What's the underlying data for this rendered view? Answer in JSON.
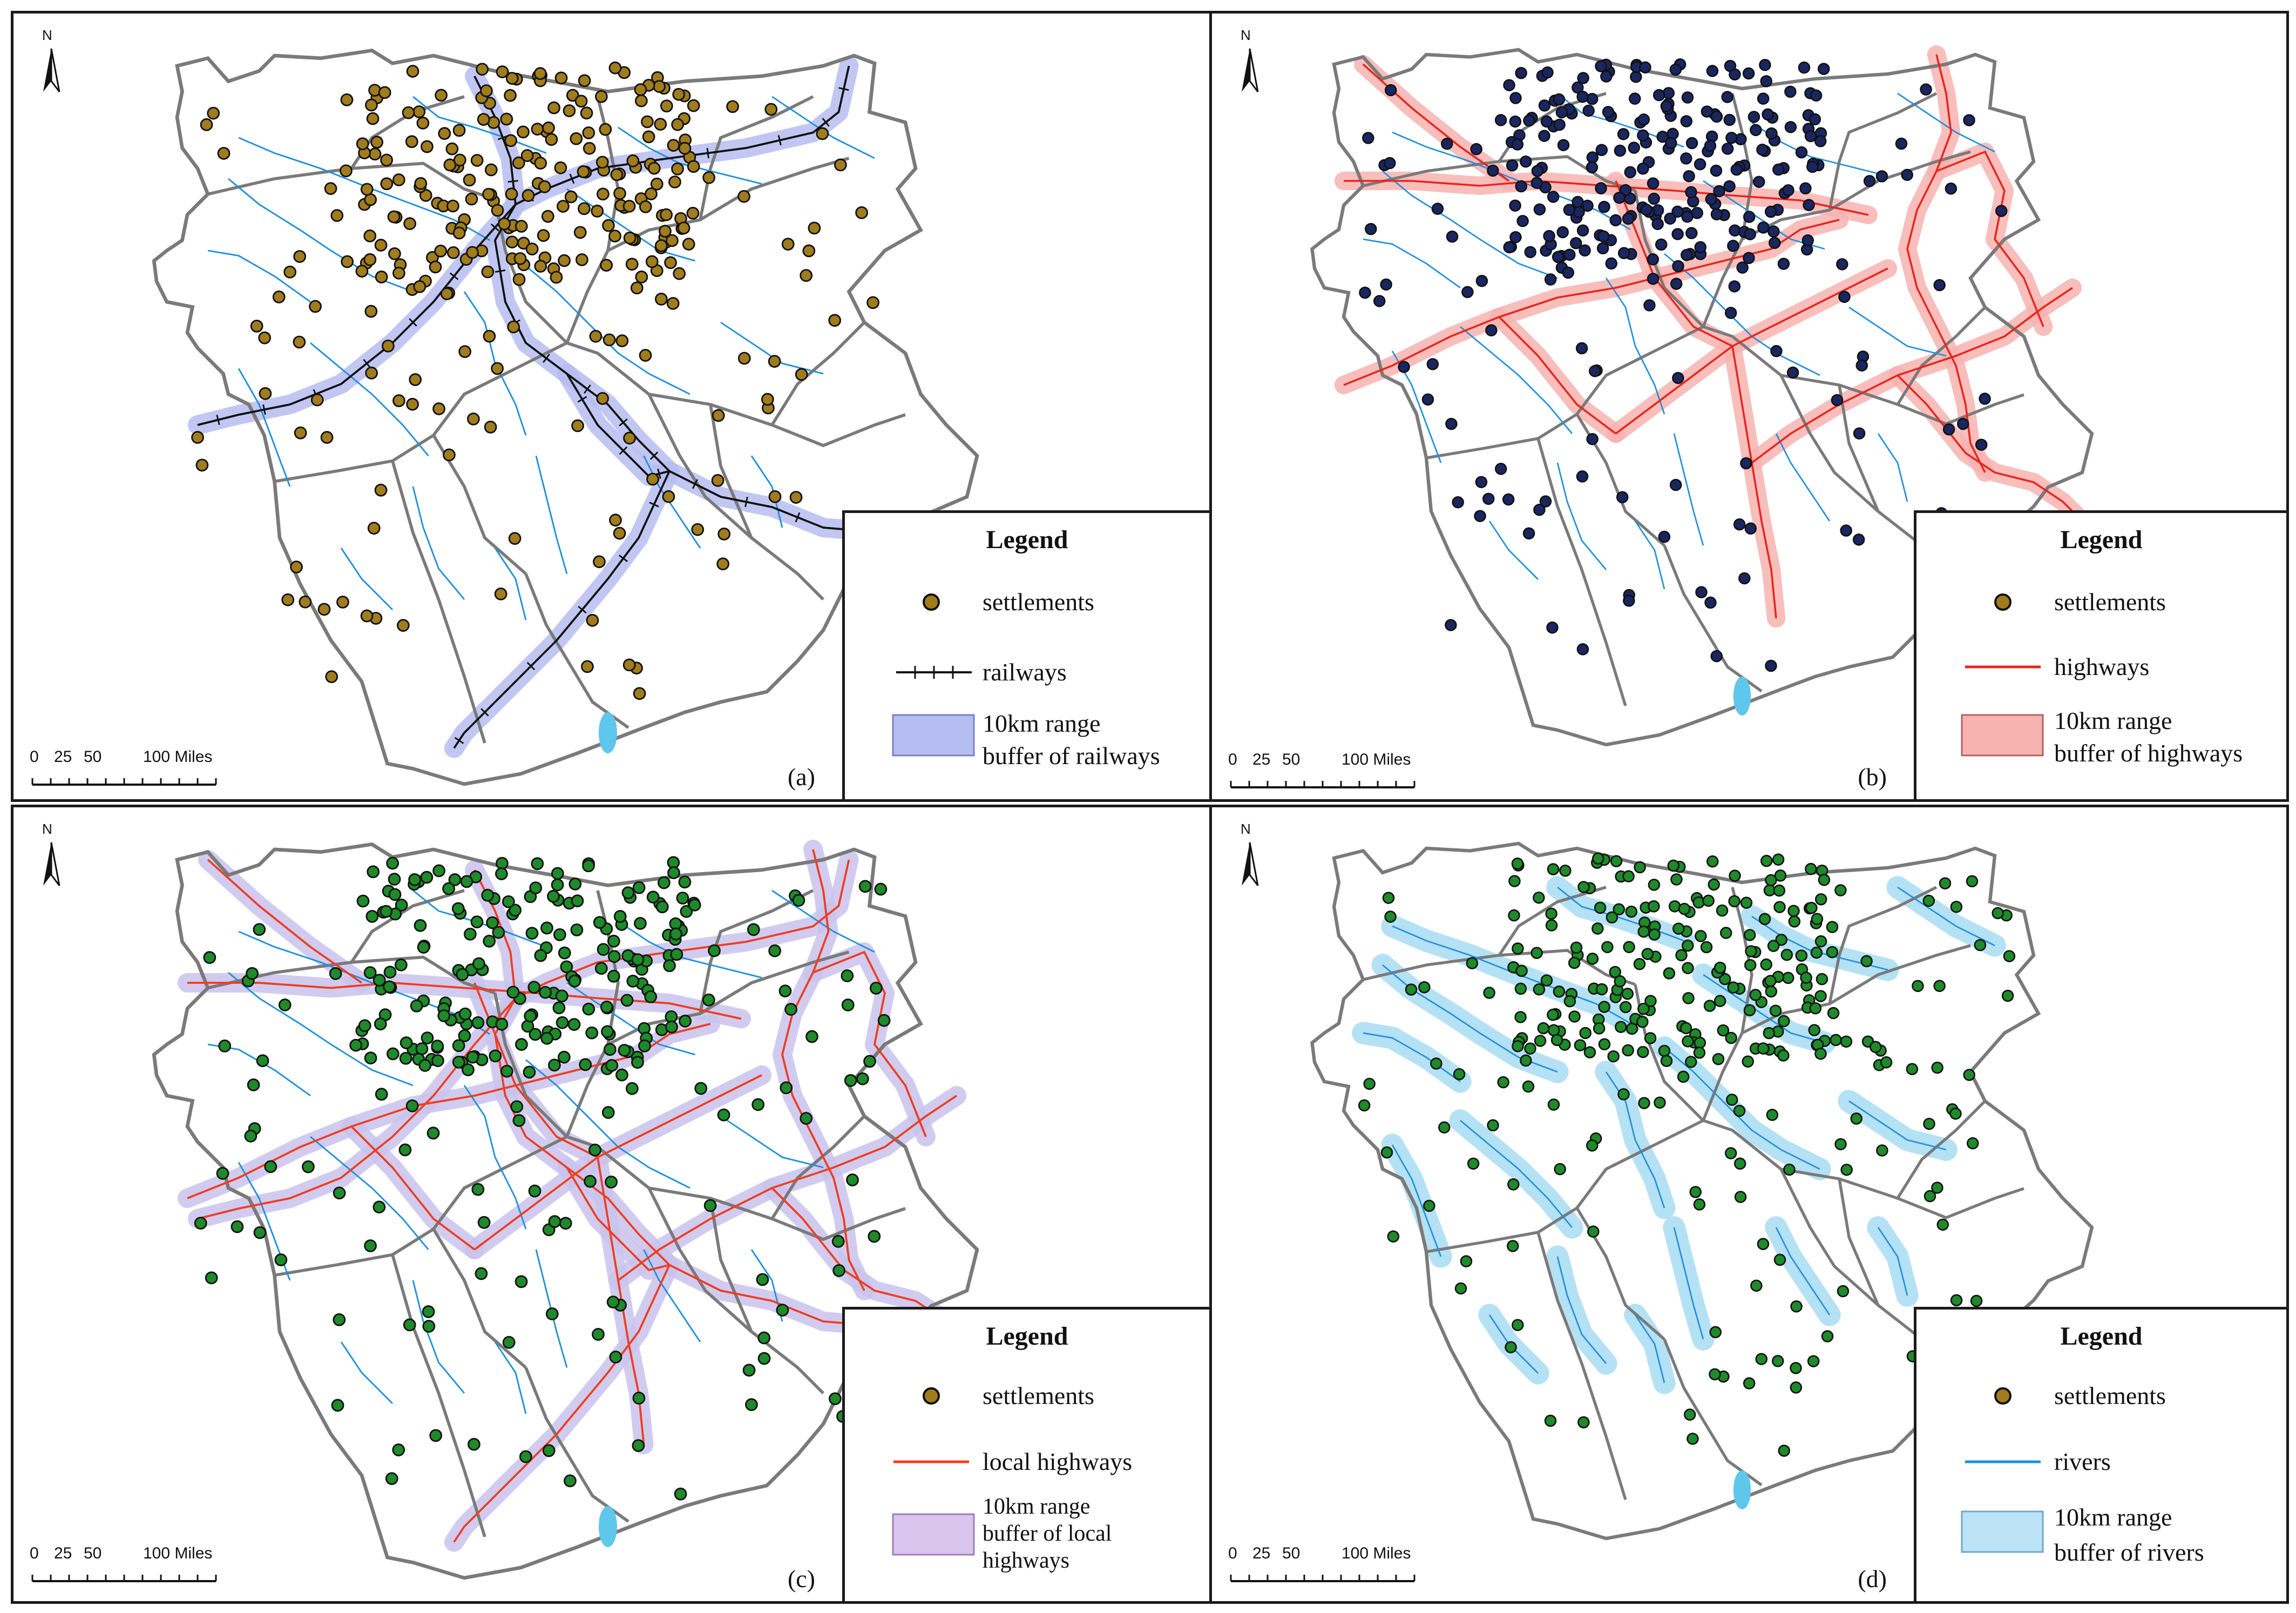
{
  "panels": [
    {
      "id": "a",
      "label": "(a)",
      "north": "N",
      "scale": {
        "ticks": [
          "0",
          "25",
          "50",
          "100 Miles"
        ]
      },
      "legend": {
        "title": "Legend",
        "items": [
          {
            "label": "settlements",
            "symbol": "point",
            "color": "#a07c1c"
          },
          {
            "label": "railways",
            "symbol": "railway",
            "color": "#111111"
          },
          {
            "label_lines": [
              "10km range",
              "buffer of railways"
            ],
            "symbol": "box",
            "color": "#b6bdf0"
          }
        ]
      },
      "settlement_color": "#a07c1c",
      "network_color": "#111111",
      "buffer_color": "#b6bdf0"
    },
    {
      "id": "b",
      "label": "(b)",
      "north": "N",
      "scale": {
        "ticks": [
          "0",
          "25",
          "50",
          "100 Miles"
        ]
      },
      "legend": {
        "title": "Legend",
        "items": [
          {
            "label": "settlements",
            "symbol": "point",
            "color": "#a07c1c"
          },
          {
            "label": "highways",
            "symbol": "line",
            "color": "#e8261c"
          },
          {
            "label_lines": [
              "10km range",
              "buffer of highways"
            ],
            "symbol": "box",
            "color": "#f7b3b0"
          }
        ]
      },
      "settlement_color": "#1a2660",
      "network_color": "#e8261c",
      "buffer_color": "#f7b3b0"
    },
    {
      "id": "c",
      "label": "(c)",
      "north": "N",
      "scale": {
        "ticks": [
          "0",
          "25",
          "50",
          "100 Miles"
        ]
      },
      "legend": {
        "title": "Legend",
        "items": [
          {
            "label": "settlements",
            "symbol": "point",
            "color": "#a07c1c"
          },
          {
            "label": "local highways",
            "symbol": "line",
            "color": "#ef3e22"
          },
          {
            "label_lines": [
              "10km range",
              "buffer of local",
              "highways"
            ],
            "symbol": "box",
            "color": "#d9c4ee"
          }
        ]
      },
      "settlement_color": "#1e8a2a",
      "network_color": "#ef3e22",
      "buffer_color": "#c9c3ec"
    },
    {
      "id": "d",
      "label": "(d)",
      "north": "N",
      "scale": {
        "ticks": [
          "0",
          "25",
          "50",
          "100 Miles"
        ]
      },
      "legend": {
        "title": "Legend",
        "items": [
          {
            "label": "settlements",
            "symbol": "point",
            "color": "#a07c1c"
          },
          {
            "label": "rivers",
            "symbol": "line",
            "color": "#1e90dc"
          },
          {
            "label_lines": [
              "10km range",
              "buffer of rivers"
            ],
            "symbol": "box",
            "color": "#bde3f7"
          }
        ]
      },
      "settlement_color": "#1e8a2a",
      "network_color": "#1e90dc",
      "buffer_color": "#a8dcf2"
    }
  ],
  "colors": {
    "boundary": "#7a7a7a",
    "river": "#1e90dc",
    "frame": "#1a1a1a"
  }
}
